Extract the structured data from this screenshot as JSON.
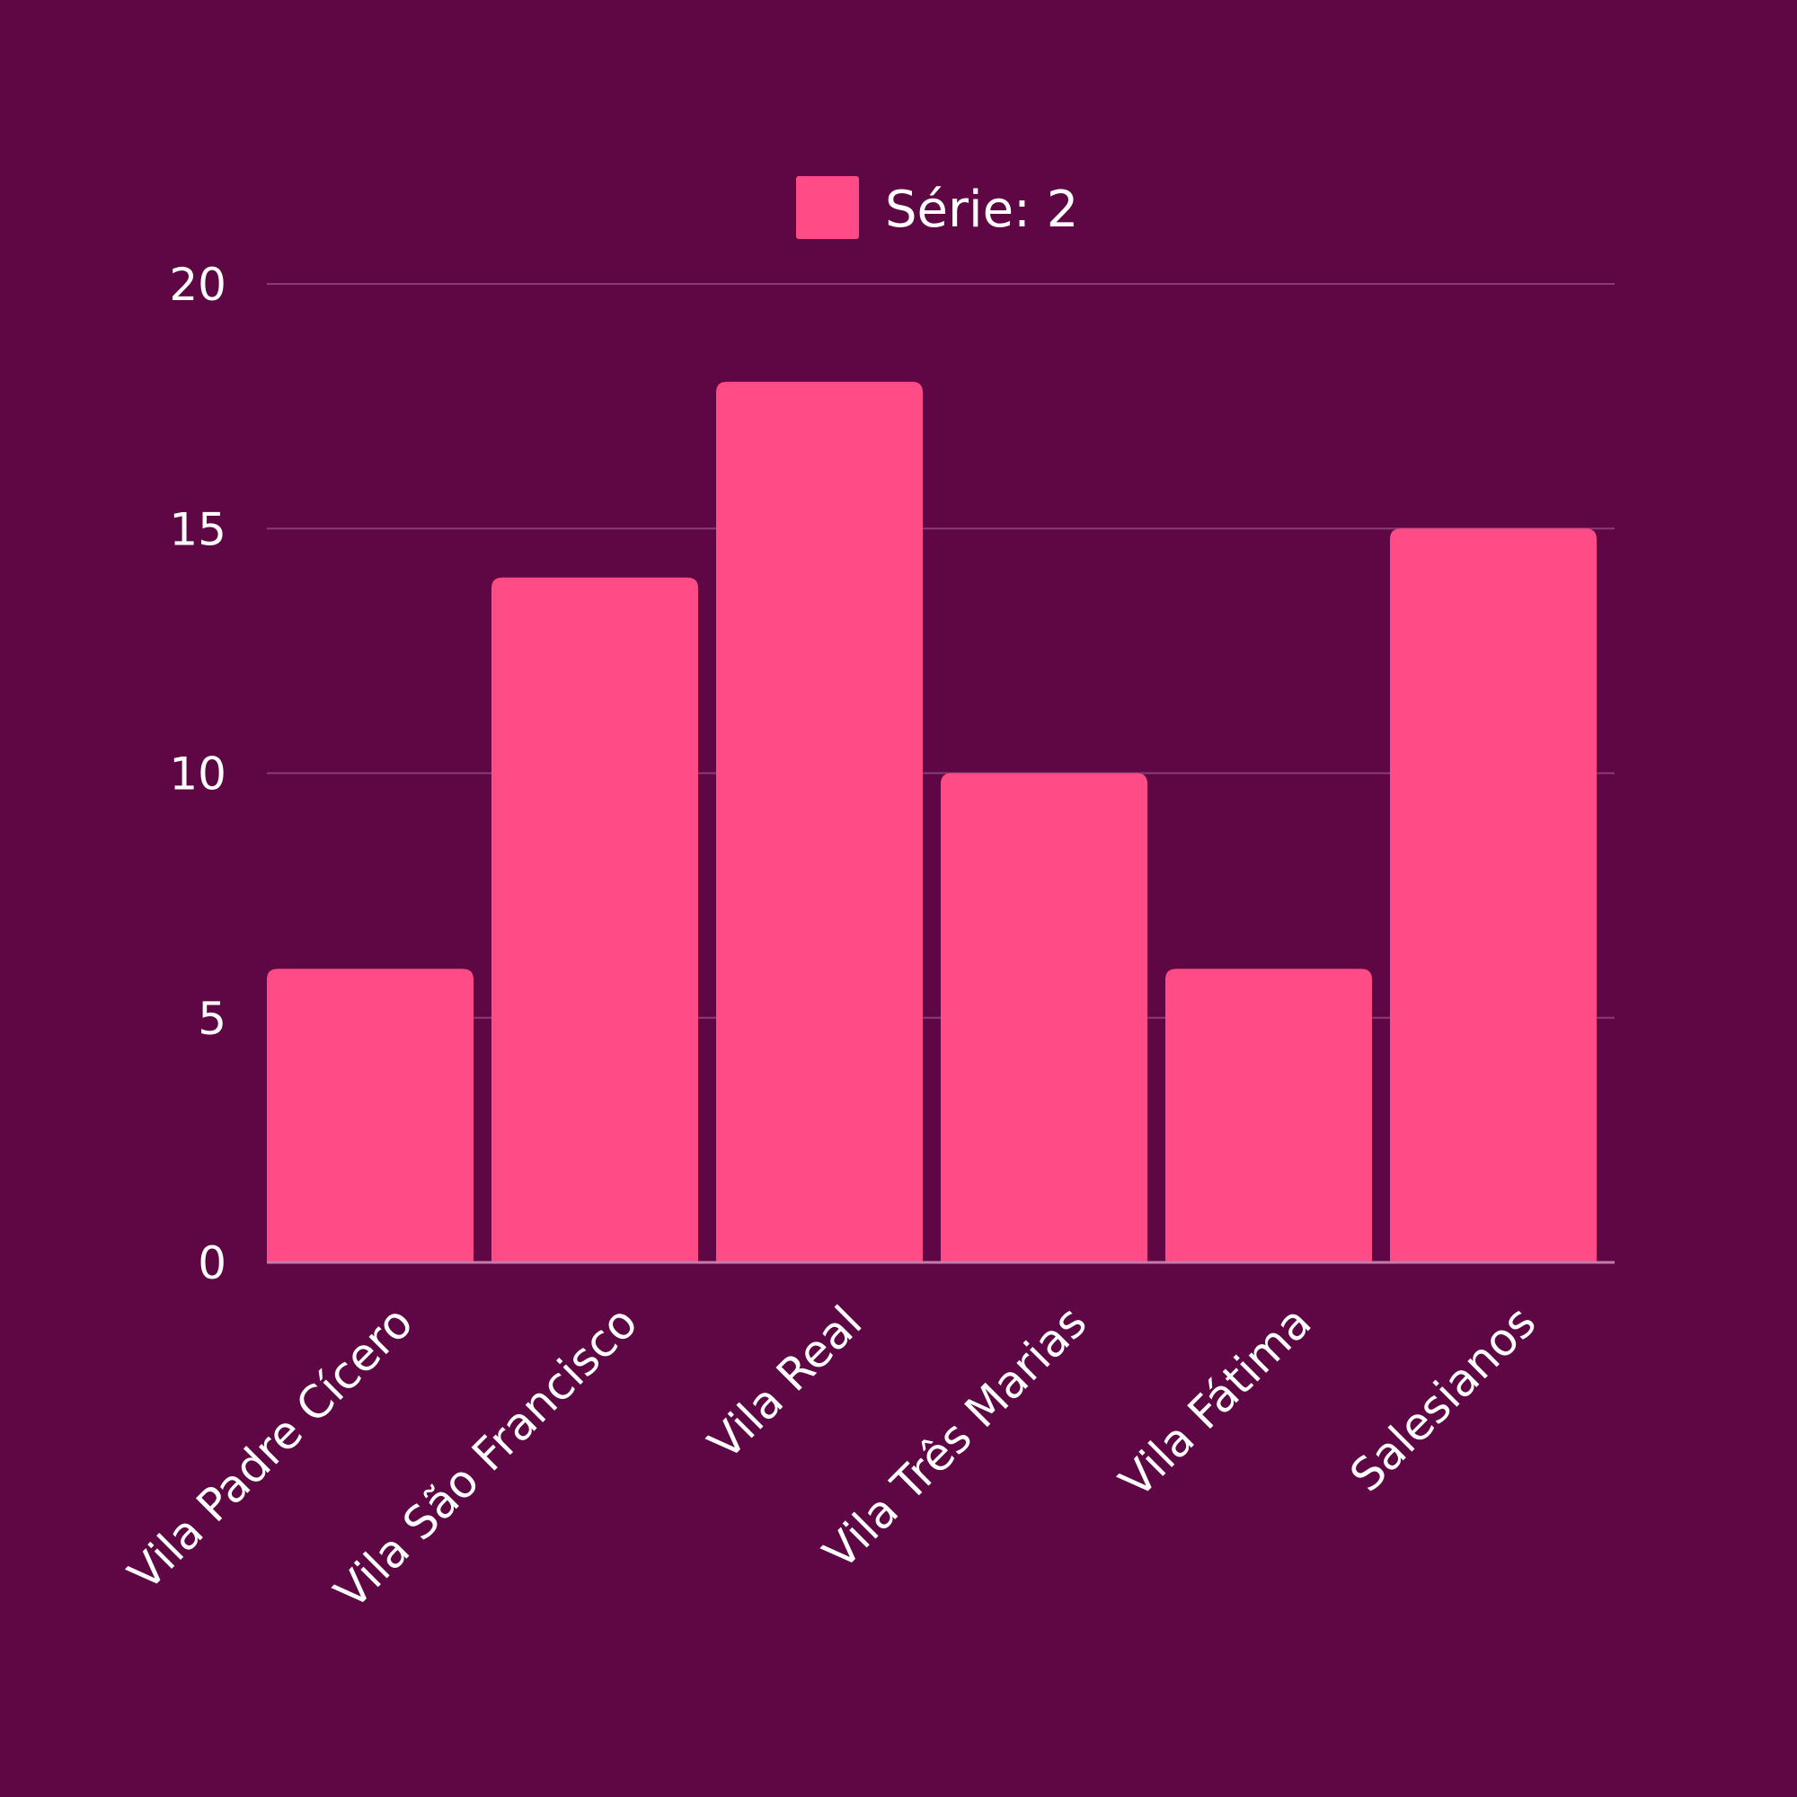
{
  "background_color": "#5f0744",
  "chart_data": {
    "type": "bar",
    "categories": [
      "Vila Padre Cícero",
      "Vila São Francisco",
      "Vila Real",
      "Vila Três Marias",
      "Vila Fátima",
      "Salesianos"
    ],
    "series": [
      {
        "name": "Série: 2",
        "color": "#ff4b86",
        "values": [
          6,
          14,
          18,
          10,
          6,
          15
        ]
      }
    ],
    "ylim": [
      0,
      20
    ],
    "yticks": [
      "0",
      "5",
      "10",
      "15",
      "20"
    ],
    "grid": true,
    "legend_position": "top-center"
  }
}
